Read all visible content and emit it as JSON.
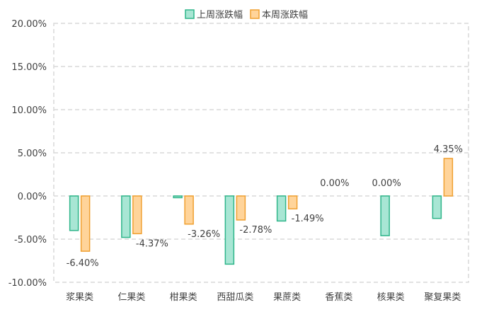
{
  "chart_data": {
    "type": "bar",
    "categories": [
      "浆果类",
      "仁果类",
      "柑果类",
      "西甜瓜类",
      "果蔗类",
      "香蕉类",
      "核果类",
      "聚复果类"
    ],
    "series": [
      {
        "name": "上周涨跌幅",
        "values": [
          -4.0,
          -4.8,
          -0.2,
          -7.9,
          -2.9,
          0.0,
          -4.6,
          -2.6
        ],
        "fill": "#a8e6d4",
        "stroke": "#2fb58a",
        "labels": [
          "",
          "",
          "",
          "",
          "",
          "",
          "",
          ""
        ]
      },
      {
        "name": "本周涨跌幅",
        "values": [
          -6.4,
          -4.37,
          -3.26,
          -2.78,
          -1.49,
          0.0,
          0.0,
          4.35
        ],
        "fill": "#ffd49a",
        "stroke": "#f0a030",
        "labels": [
          "-6.40%",
          "-4.37%",
          "-3.26%",
          "-2.78%",
          "-1.49%",
          "0.00%",
          "0.00%",
          "4.35%"
        ]
      }
    ],
    "yticks": [
      "20.00%",
      "15.00%",
      "10.00%",
      "5.00%",
      "0.00%",
      "-5.00%",
      "-10.00%"
    ],
    "ylim": [
      -10,
      20
    ],
    "ylabel": "",
    "xlabel": "",
    "grid": true,
    "legend": "top-center"
  }
}
